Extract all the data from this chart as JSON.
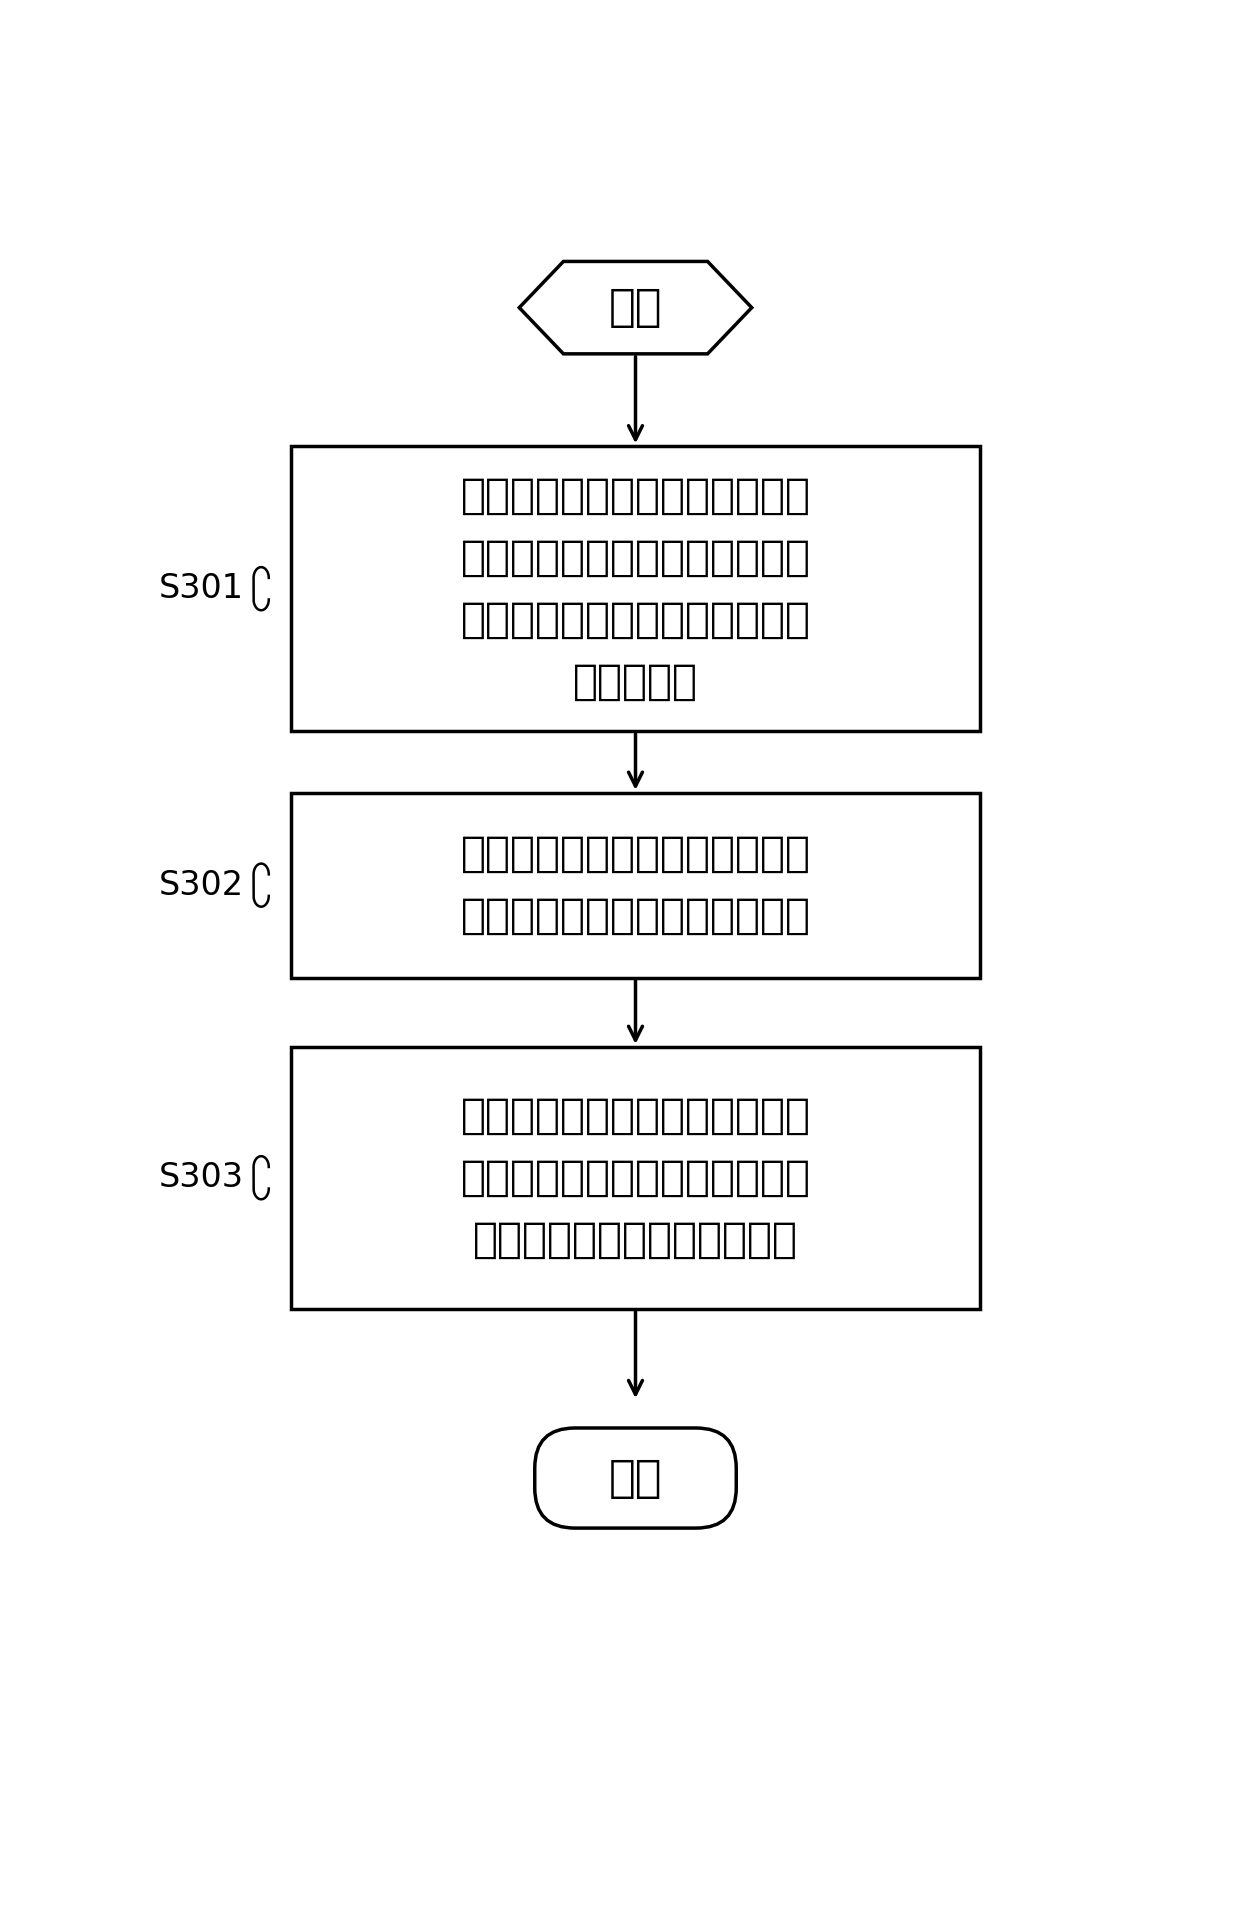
{
  "bg_color": "#ffffff",
  "line_color": "#000000",
  "text_color": "#000000",
  "start_label": "开始",
  "end_label": "结束",
  "boxes": [
    {
      "label": "将晴天、轻雾、雾、大雾、浓雾\n、强浓雾对应的图像类中的训练\n图像进行灰度化，得到灰度化后\n的训练图像",
      "label_id": "S301"
    },
    {
      "label": "对所述灰度化后的训练图像进行\n灰度直方图统计，得到统计结果",
      "label_id": "S302"
    },
    {
      "label": "根据所述的统计结果确定出晴天\n、轻雾、雾、大雾、浓雾、强浓\n雾对应的图像类的概率值特征",
      "label_id": "S303"
    }
  ],
  "figsize": [
    12.4,
    19.22
  ],
  "dpi": 100
}
